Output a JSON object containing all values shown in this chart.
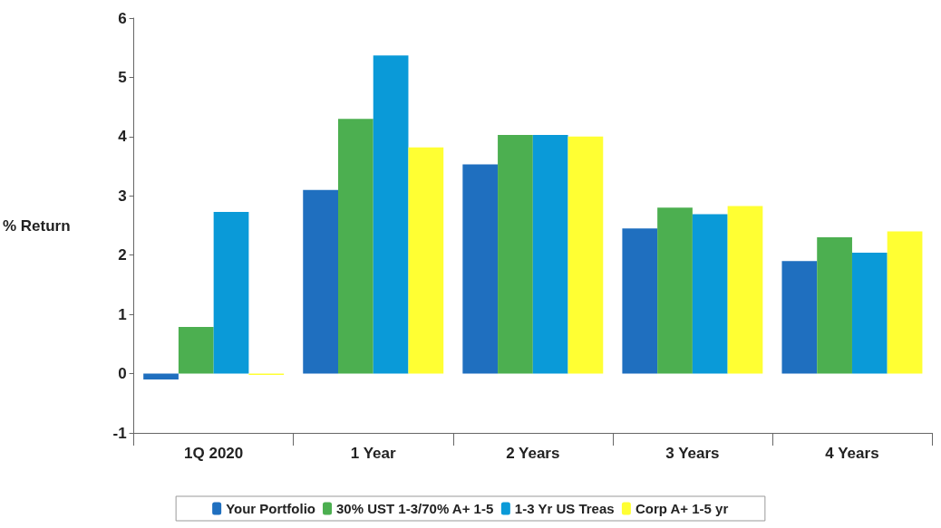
{
  "chart_data": {
    "type": "bar",
    "ylabel": "% Return",
    "categories": [
      "1Q 2020",
      "1 Year",
      "2 Years",
      "3 Years",
      "4 Years"
    ],
    "series": [
      {
        "name": "Your Portfolio",
        "color": "#1f6fbf",
        "values": [
          -0.1,
          3.1,
          3.53,
          2.45,
          1.9
        ]
      },
      {
        "name": "30% UST 1-3/70% A+ 1-5",
        "color": "#4caf50",
        "values": [
          0.79,
          4.3,
          4.03,
          2.8,
          2.3
        ]
      },
      {
        "name": "1-3 Yr US Treas",
        "color": "#0a9ad8",
        "values": [
          2.73,
          5.37,
          4.03,
          2.69,
          2.04
        ]
      },
      {
        "name": "Corp A+ 1-5 yr",
        "color": "#ffff33",
        "values": [
          -0.02,
          3.82,
          4.0,
          2.83,
          2.4
        ]
      }
    ],
    "ylim": [
      -1,
      6
    ],
    "yticks": [
      -1,
      0,
      1,
      2,
      3,
      4,
      5,
      6
    ],
    "grid": false,
    "legend": "bottom"
  }
}
